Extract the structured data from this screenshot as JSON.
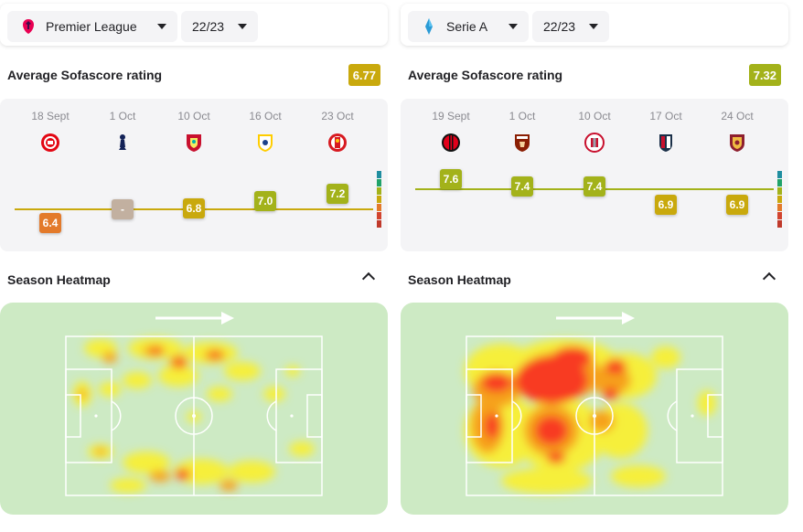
{
  "panels": [
    {
      "league": {
        "name": "Premier League",
        "logo_icon": "premier-league-icon",
        "season": "22/23"
      },
      "rating": {
        "title": "Average Sofascore rating",
        "average": "6.77",
        "average_color": "#c9a90d",
        "matches": [
          {
            "date": "18 Sept",
            "opponent_icon": "brentford-crest-icon",
            "rating": "6.4",
            "value": 6.4,
            "color": "#e37a2b"
          },
          {
            "date": "1 Oct",
            "opponent_icon": "tottenham-crest-icon",
            "rating": "-",
            "value": null,
            "color": "#c2b0a0"
          },
          {
            "date": "10 Oct",
            "opponent_icon": "liverpool-crest-icon",
            "rating": "6.8",
            "value": 6.8,
            "color": "#c9a90d"
          },
          {
            "date": "16 Oct",
            "opponent_icon": "leeds-crest-icon",
            "rating": "7.0",
            "value": 7.0,
            "color": "#a3b21a"
          },
          {
            "date": "23 Oct",
            "opponent_icon": "southampton-crest-icon",
            "rating": "7.2",
            "value": 7.2,
            "color": "#a3b21a"
          }
        ],
        "average_value": 6.77
      },
      "heatmap": {
        "title": "Season Heatmap",
        "intensity": "low-moderate",
        "main_zones": [
          "attacking half",
          "left wing",
          "right wing"
        ]
      }
    },
    {
      "league": {
        "name": "Serie A",
        "logo_icon": "serie-a-icon",
        "season": "22/23"
      },
      "rating": {
        "title": "Average Sofascore rating",
        "average": "7.32",
        "average_color": "#a3b21a",
        "matches": [
          {
            "date": "19 Sept",
            "opponent_icon": "ac-milan-crest-icon",
            "rating": "7.6",
            "value": 7.6,
            "color": "#a3b21a"
          },
          {
            "date": "1 Oct",
            "opponent_icon": "torino-crest-icon",
            "rating": "7.4",
            "value": 7.4,
            "color": "#a3b21a"
          },
          {
            "date": "10 Oct",
            "opponent_icon": "cremonese-crest-icon",
            "rating": "7.4",
            "value": 7.4,
            "color": "#a3b21a"
          },
          {
            "date": "17 Oct",
            "opponent_icon": "bologna-crest-icon",
            "rating": "6.9",
            "value": 6.9,
            "color": "#c9a90d"
          },
          {
            "date": "24 Oct",
            "opponent_icon": "roma-crest-icon",
            "rating": "6.9",
            "value": 6.9,
            "color": "#c9a90d"
          }
        ],
        "average_value": 7.32
      },
      "heatmap": {
        "title": "Season Heatmap",
        "intensity": "high",
        "main_zones": [
          "left half",
          "left-centre attacking third"
        ]
      }
    }
  ],
  "rating_scale_colors": [
    "#1f8ea0",
    "#20a36a",
    "#a3b21a",
    "#c9a90d",
    "#e37a2b",
    "#d2442f",
    "#c0392b"
  ]
}
